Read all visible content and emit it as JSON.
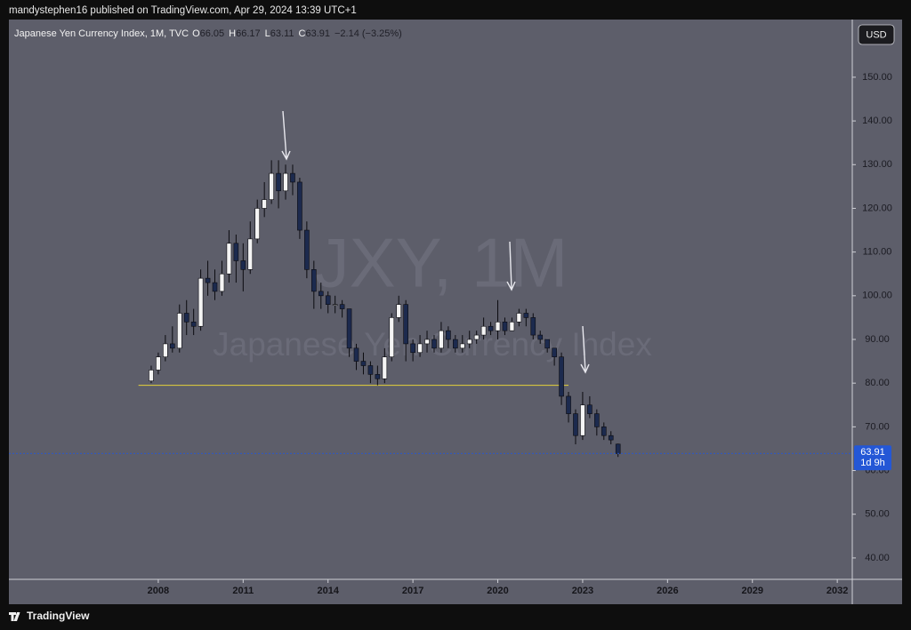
{
  "header": {
    "text": "mandystephen16 published on TradingView.com, Apr 29, 2024 13:39 UTC+1"
  },
  "footer": {
    "brand": "TradingView"
  },
  "chart_data": {
    "type": "candlestick",
    "title": "Japanese Yen Currency Index, 1M, TVC",
    "legend_keys": [
      "O",
      "H",
      "L",
      "C"
    ],
    "change_label": "−2.14 (−3.25%)",
    "currency": "USD",
    "countdown": "1d 9h",
    "watermark": {
      "symbol": "JXY, 1M",
      "name": "Japanese Yen Currency Index"
    },
    "up_color": "#f4f4f4",
    "down_color": "#1c2a4e",
    "wick_color": "#0b0b10",
    "last_price_color": "#2457d6",
    "level_line": {
      "value": 79.5,
      "x": [
        2007.3,
        2022.5
      ],
      "color": "#e6d23a"
    },
    "x": [
      2007.75,
      2008.0,
      2008.25,
      2008.5,
      2008.75,
      2009.0,
      2009.25,
      2009.5,
      2009.75,
      2010.0,
      2010.25,
      2010.5,
      2010.75,
      2011.0,
      2011.25,
      2011.5,
      2011.75,
      2012.0,
      2012.25,
      2012.5,
      2012.75,
      2013.0,
      2013.25,
      2013.5,
      2013.75,
      2014.0,
      2014.25,
      2014.5,
      2014.75,
      2015.0,
      2015.25,
      2015.5,
      2015.75,
      2016.0,
      2016.25,
      2016.5,
      2016.75,
      2017.0,
      2017.25,
      2017.5,
      2017.75,
      2018.0,
      2018.25,
      2018.5,
      2018.75,
      2019.0,
      2019.25,
      2019.5,
      2019.75,
      2020.0,
      2020.25,
      2020.5,
      2020.75,
      2021.0,
      2021.25,
      2021.5,
      2021.75,
      2022.0,
      2022.25,
      2022.5,
      2022.75,
      2023.0,
      2023.25,
      2023.5,
      2023.75,
      2024.0,
      2024.25
    ],
    "open": [
      80.5,
      83,
      86,
      89,
      88,
      96,
      94,
      93,
      104,
      103,
      101,
      105,
      112,
      108,
      106,
      113,
      120,
      122,
      128,
      124,
      128,
      126,
      115,
      106,
      101,
      100,
      98,
      98,
      97,
      88,
      85,
      84,
      82,
      81,
      86,
      95,
      98,
      89,
      87,
      89,
      90,
      88,
      92,
      90,
      88,
      89,
      90,
      91,
      93,
      92,
      94,
      92,
      94,
      96,
      95,
      91,
      90,
      88,
      86,
      77,
      73,
      68,
      75,
      73,
      70,
      68,
      66.05
    ],
    "high": [
      84,
      87,
      91,
      93,
      98,
      99,
      97,
      106,
      108,
      106,
      108,
      115,
      114,
      112,
      117,
      122,
      126,
      131,
      131,
      130,
      130,
      127,
      117,
      108,
      103,
      101,
      100,
      99,
      97,
      89,
      87,
      85,
      84,
      88,
      96,
      100,
      99,
      90,
      91,
      92,
      91,
      94,
      93,
      91,
      91,
      92,
      92,
      95,
      94,
      99,
      95,
      95,
      97,
      97,
      96,
      92,
      90,
      88,
      87,
      78,
      74,
      78,
      77,
      74,
      71,
      69,
      66.17
    ],
    "low": [
      80,
      82,
      85,
      87,
      87,
      91,
      91,
      92,
      100,
      99,
      100,
      103,
      103,
      101,
      105,
      112,
      118,
      121,
      120,
      122,
      123,
      113,
      104,
      97,
      97,
      96,
      96,
      95,
      86,
      83,
      82,
      80,
      79.5,
      80,
      85,
      94,
      85,
      85,
      86,
      87,
      87,
      87,
      88,
      87,
      87,
      88,
      89,
      90,
      91,
      90,
      91,
      92,
      93,
      93,
      90,
      89,
      87,
      84,
      75,
      71,
      66,
      67,
      72,
      68,
      67,
      66,
      63.11
    ],
    "close": [
      83,
      86,
      89,
      88,
      96,
      94,
      93,
      104,
      103,
      101,
      105,
      112,
      108,
      106,
      113,
      120,
      122,
      128,
      124,
      128,
      126,
      115,
      106,
      101,
      100,
      98,
      98,
      97,
      88,
      85,
      84,
      82,
      81,
      86,
      95,
      98,
      89,
      87,
      89,
      90,
      88,
      92,
      90,
      88,
      89,
      90,
      91,
      93,
      92,
      94,
      92,
      94,
      96,
      95,
      91,
      90,
      88,
      86,
      77,
      73,
      68,
      75,
      73,
      70,
      68,
      67,
      63.91
    ],
    "xlim": [
      2002.72,
      2032.53
    ],
    "ylim": [
      35.1,
      163.2
    ],
    "xticks": [
      2008,
      2011,
      2014,
      2017,
      2020,
      2023,
      2026,
      2029,
      2032
    ],
    "yticks": [
      {
        "value": 40,
        "label": "40.00"
      },
      {
        "value": 50,
        "label": "50.00"
      },
      {
        "value": 60,
        "label": "60.00"
      },
      {
        "value": 70,
        "label": "70.00"
      },
      {
        "value": 80,
        "label": "80.00"
      },
      {
        "value": 90,
        "label": "90.00"
      },
      {
        "value": 100,
        "label": "100.00"
      },
      {
        "value": 110,
        "label": "110.00"
      },
      {
        "value": 120,
        "label": "120.00"
      },
      {
        "value": 130,
        "label": "130.00"
      },
      {
        "value": 140,
        "label": "140.00"
      },
      {
        "value": 150,
        "label": "150.00"
      }
    ]
  }
}
